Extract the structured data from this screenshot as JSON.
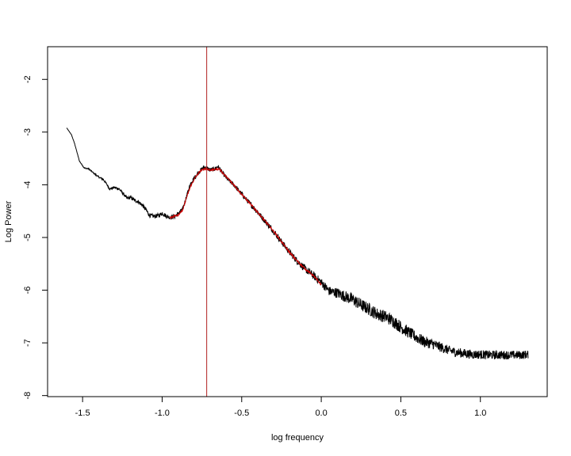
{
  "chart_data": {
    "type": "line",
    "title": "",
    "xlabel": "log frequency",
    "ylabel": "Log Power",
    "xlim": [
      -1.72,
      1.42
    ],
    "ylim": [
      -8.02,
      -1.38
    ],
    "x_ticks": [
      -1.5,
      -1.0,
      -0.5,
      0.0,
      0.5,
      1.0
    ],
    "x_tick_labels": [
      "-1.5",
      "-1.0",
      "-0.5",
      "0.0",
      "0.5",
      "1.0"
    ],
    "y_ticks": [
      -8,
      -7,
      -6,
      -5,
      -4,
      -3,
      -2
    ],
    "y_tick_labels": [
      "-8",
      "-7",
      "-6",
      "-5",
      "-4",
      "-3",
      "-2"
    ],
    "grid": false,
    "vline": {
      "x": -0.72,
      "color": "#b22222"
    },
    "series": [
      {
        "color": "#000000",
        "x_range": [
          -1.6,
          1.3
        ],
        "points": [
          [
            -1.6,
            -2.92
          ],
          [
            -1.57,
            -3.05
          ],
          [
            -1.55,
            -3.22
          ],
          [
            -1.52,
            -3.55
          ],
          [
            -1.49,
            -3.68
          ],
          [
            -1.46,
            -3.7
          ],
          [
            -1.43,
            -3.78
          ],
          [
            -1.4,
            -3.85
          ],
          [
            -1.37,
            -3.9
          ],
          [
            -1.35,
            -3.98
          ],
          [
            -1.33,
            -4.08
          ],
          [
            -1.3,
            -4.05
          ],
          [
            -1.27,
            -4.08
          ],
          [
            -1.25,
            -4.15
          ],
          [
            -1.22,
            -4.26
          ],
          [
            -1.2,
            -4.24
          ],
          [
            -1.17,
            -4.3
          ],
          [
            -1.15,
            -4.32
          ],
          [
            -1.12,
            -4.4
          ],
          [
            -1.1,
            -4.48
          ],
          [
            -1.08,
            -4.58
          ],
          [
            -1.05,
            -4.6
          ],
          [
            -1.02,
            -4.58
          ],
          [
            -1.0,
            -4.54
          ],
          [
            -0.97,
            -4.6
          ],
          [
            -0.95,
            -4.62
          ],
          [
            -0.92,
            -4.6
          ],
          [
            -0.9,
            -4.55
          ],
          [
            -0.87,
            -4.46
          ],
          [
            -0.85,
            -4.25
          ],
          [
            -0.83,
            -4.05
          ],
          [
            -0.8,
            -3.88
          ],
          [
            -0.77,
            -3.76
          ],
          [
            -0.74,
            -3.67
          ],
          [
            -0.72,
            -3.68
          ],
          [
            -0.7,
            -3.72
          ],
          [
            -0.67,
            -3.7
          ],
          [
            -0.65,
            -3.65
          ],
          [
            -0.62,
            -3.78
          ],
          [
            -0.58,
            -3.92
          ],
          [
            -0.55,
            -4.0
          ],
          [
            -0.5,
            -4.18
          ],
          [
            -0.45,
            -4.35
          ],
          [
            -0.4,
            -4.52
          ],
          [
            -0.35,
            -4.7
          ],
          [
            -0.3,
            -4.88
          ],
          [
            -0.25,
            -5.08
          ],
          [
            -0.2,
            -5.28
          ],
          [
            -0.15,
            -5.45
          ],
          [
            -0.1,
            -5.6
          ],
          [
            -0.05,
            -5.72
          ],
          [
            0.0,
            -5.85
          ],
          [
            0.05,
            -6.02
          ],
          [
            0.1,
            -6.05
          ],
          [
            0.15,
            -6.12
          ],
          [
            0.2,
            -6.18
          ],
          [
            0.25,
            -6.28
          ],
          [
            0.3,
            -6.36
          ],
          [
            0.35,
            -6.45
          ],
          [
            0.4,
            -6.5
          ],
          [
            0.45,
            -6.58
          ],
          [
            0.5,
            -6.7
          ],
          [
            0.55,
            -6.8
          ],
          [
            0.6,
            -6.9
          ],
          [
            0.65,
            -6.98
          ],
          [
            0.7,
            -7.02
          ],
          [
            0.75,
            -7.08
          ],
          [
            0.8,
            -7.14
          ],
          [
            0.85,
            -7.18
          ],
          [
            0.9,
            -7.2
          ],
          [
            0.95,
            -7.22
          ],
          [
            1.0,
            -7.22
          ],
          [
            1.05,
            -7.23
          ],
          [
            1.1,
            -7.23
          ],
          [
            1.15,
            -7.23
          ],
          [
            1.2,
            -7.23
          ],
          [
            1.25,
            -7.23
          ],
          [
            1.3,
            -7.22
          ]
        ],
        "noise": [
          [
            -1.6,
            0.0
          ],
          [
            -1.1,
            0.04
          ],
          [
            -0.6,
            0.04
          ],
          [
            -0.2,
            0.06
          ],
          [
            0.0,
            0.08
          ],
          [
            0.2,
            0.12
          ],
          [
            0.5,
            0.12
          ],
          [
            0.8,
            0.09
          ],
          [
            1.3,
            0.08
          ]
        ]
      },
      {
        "color": "#cc0000",
        "x_range": [
          -0.95,
          0.0
        ],
        "points": [
          [
            -0.95,
            -4.62
          ],
          [
            -0.9,
            -4.57
          ],
          [
            -0.87,
            -4.48
          ],
          [
            -0.85,
            -4.27
          ],
          [
            -0.82,
            -4.02
          ],
          [
            -0.79,
            -3.85
          ],
          [
            -0.76,
            -3.74
          ],
          [
            -0.73,
            -3.69
          ],
          [
            -0.7,
            -3.72
          ],
          [
            -0.67,
            -3.71
          ],
          [
            -0.64,
            -3.7
          ],
          [
            -0.6,
            -3.84
          ],
          [
            -0.55,
            -4.0
          ],
          [
            -0.5,
            -4.18
          ],
          [
            -0.45,
            -4.35
          ],
          [
            -0.4,
            -4.52
          ],
          [
            -0.35,
            -4.7
          ],
          [
            -0.3,
            -4.88
          ],
          [
            -0.25,
            -5.08
          ],
          [
            -0.2,
            -5.28
          ],
          [
            -0.15,
            -5.45
          ],
          [
            -0.1,
            -5.6
          ],
          [
            -0.05,
            -5.72
          ],
          [
            0.0,
            -5.9
          ]
        ]
      }
    ]
  }
}
